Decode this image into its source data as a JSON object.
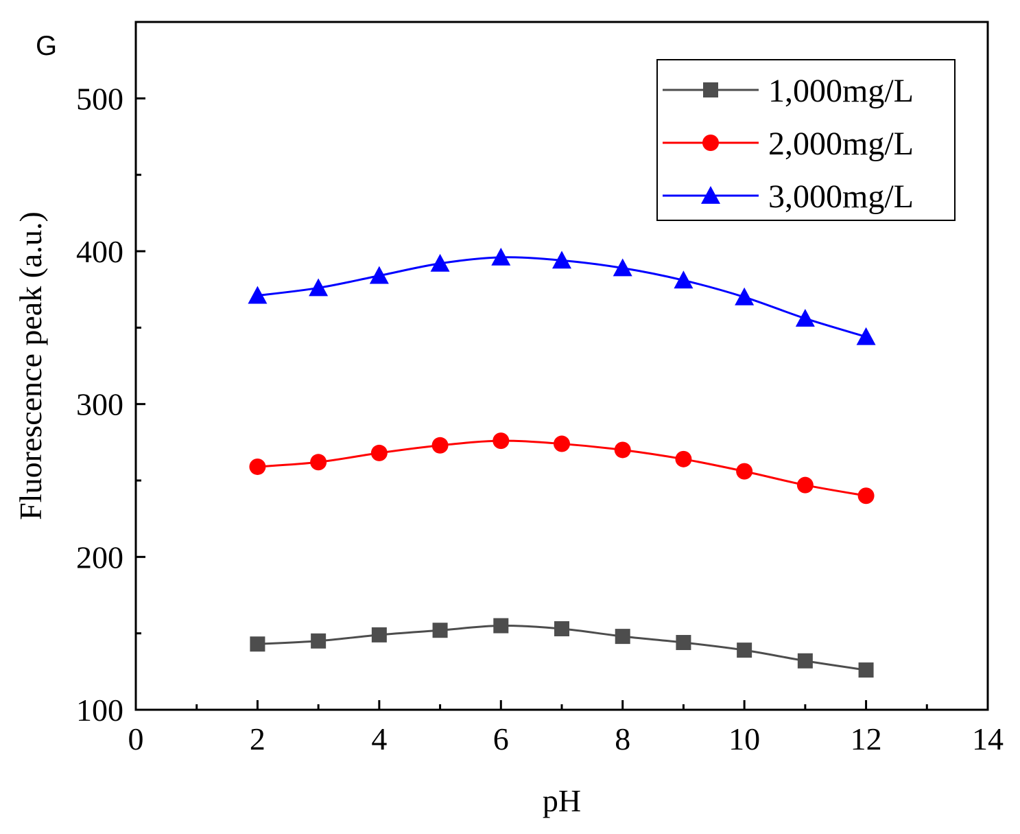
{
  "panel_label": "G",
  "chart_data": {
    "type": "line",
    "title": "",
    "xlabel": "pH",
    "ylabel": "Fluorescence peak (a.u.)",
    "xlim": [
      0,
      14
    ],
    "ylim": [
      100,
      550
    ],
    "x_major_ticks": [
      0,
      2,
      4,
      6,
      8,
      10,
      12,
      14
    ],
    "x_minor_ticks": [
      1,
      3,
      5,
      7,
      9,
      11,
      13
    ],
    "y_major_ticks": [
      100,
      200,
      300,
      400,
      500
    ],
    "y_minor_ticks": [
      150,
      250,
      350,
      450
    ],
    "grid": false,
    "legend_position": "top-right",
    "x": [
      2,
      3,
      4,
      5,
      6,
      7,
      8,
      9,
      10,
      11,
      12
    ],
    "series": [
      {
        "name": "1,000mg/L",
        "color": "#4d4d4d",
        "marker": "square",
        "values": [
          143,
          145,
          149,
          152,
          155,
          153,
          148,
          144,
          139,
          132,
          126
        ]
      },
      {
        "name": "2,000mg/L",
        "color": "#ff0000",
        "marker": "circle",
        "values": [
          259,
          262,
          268,
          273,
          276,
          274,
          270,
          264,
          256,
          247,
          240
        ]
      },
      {
        "name": "3,000mg/L",
        "color": "#0000ff",
        "marker": "triangle",
        "values": [
          371,
          376,
          384,
          392,
          396,
          394,
          389,
          381,
          370,
          356,
          344
        ]
      }
    ]
  }
}
